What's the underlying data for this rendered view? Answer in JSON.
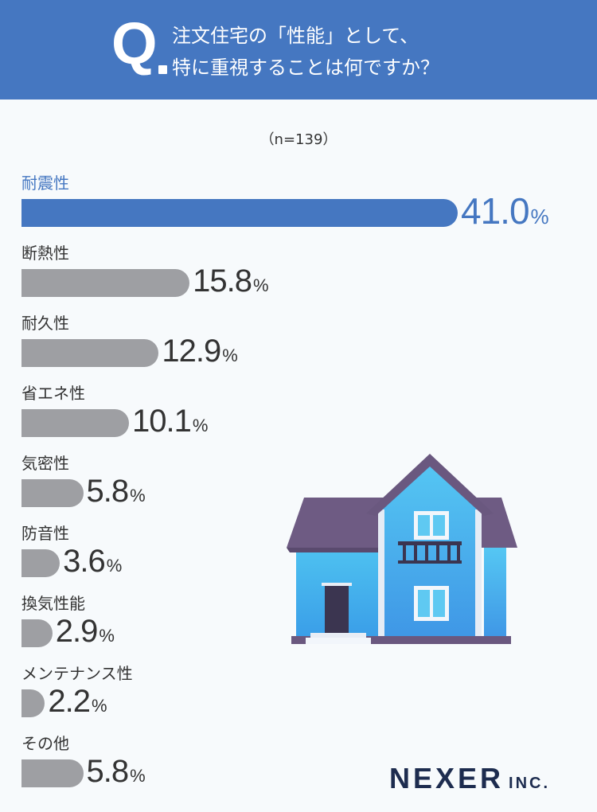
{
  "header": {
    "q_mark": "Q",
    "question_line1": "注文住宅の「性能」として、",
    "question_line2": "特に重視することは何ですか？",
    "background_color": "#4577c1"
  },
  "sample_size": "（n=139）",
  "chart_data": {
    "type": "bar",
    "orientation": "horizontal",
    "categories": [
      "耐震性",
      "断熱性",
      "耐久性",
      "省エネ性",
      "気密性",
      "防音性",
      "換気性能",
      "メンテナンス性",
      "その他"
    ],
    "values": [
      41.0,
      15.8,
      12.9,
      10.1,
      5.8,
      3.6,
      2.9,
      2.2,
      5.8
    ],
    "value_labels": [
      "41.0",
      "15.8",
      "12.9",
      "10.1",
      "5.8",
      "3.6",
      "2.9",
      "2.2",
      "5.8"
    ],
    "unit": "%",
    "highlight_index": 0,
    "highlight_color": "#4577c1",
    "bar_color": "#9e9fa3"
  },
  "logo": {
    "main": "NEXER",
    "sub": "INC."
  }
}
